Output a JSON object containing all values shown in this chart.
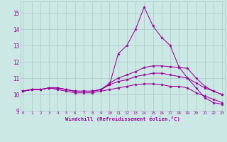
{
  "xlabel": "Windchill (Refroidissement éolien,°C)",
  "background_color": "#cce8e4",
  "grid_color": "#aac8c4",
  "line_color": "#990099",
  "x_min": 0,
  "x_max": 23,
  "y_min": 9,
  "y_max": 15.7,
  "yticks": [
    9,
    10,
    11,
    12,
    13,
    14,
    15
  ],
  "xticks": [
    0,
    1,
    2,
    3,
    4,
    5,
    6,
    7,
    8,
    9,
    10,
    11,
    12,
    13,
    14,
    15,
    16,
    17,
    18,
    19,
    20,
    21,
    22,
    23
  ],
  "curves": [
    [
      10.2,
      10.3,
      10.3,
      10.4,
      10.4,
      10.3,
      10.2,
      10.2,
      10.2,
      10.3,
      10.6,
      12.5,
      13.0,
      14.0,
      15.35,
      14.2,
      13.5,
      13.0,
      11.7,
      11.0,
      10.4,
      9.8,
      9.5,
      9.4
    ],
    [
      10.2,
      10.3,
      10.3,
      10.4,
      10.4,
      10.3,
      10.2,
      10.2,
      10.2,
      10.3,
      10.7,
      11.0,
      11.2,
      11.4,
      11.65,
      11.75,
      11.75,
      11.7,
      11.65,
      11.6,
      11.0,
      10.5,
      10.2,
      10.0
    ],
    [
      10.2,
      10.3,
      10.3,
      10.4,
      10.4,
      10.3,
      10.2,
      10.2,
      10.2,
      10.3,
      10.6,
      10.8,
      10.9,
      11.1,
      11.2,
      11.3,
      11.3,
      11.2,
      11.1,
      11.0,
      10.7,
      10.4,
      10.2,
      10.0
    ],
    [
      10.2,
      10.3,
      10.3,
      10.4,
      10.3,
      10.2,
      10.1,
      10.1,
      10.1,
      10.2,
      10.3,
      10.4,
      10.5,
      10.6,
      10.65,
      10.65,
      10.6,
      10.5,
      10.5,
      10.4,
      10.1,
      9.9,
      9.7,
      9.5
    ]
  ]
}
